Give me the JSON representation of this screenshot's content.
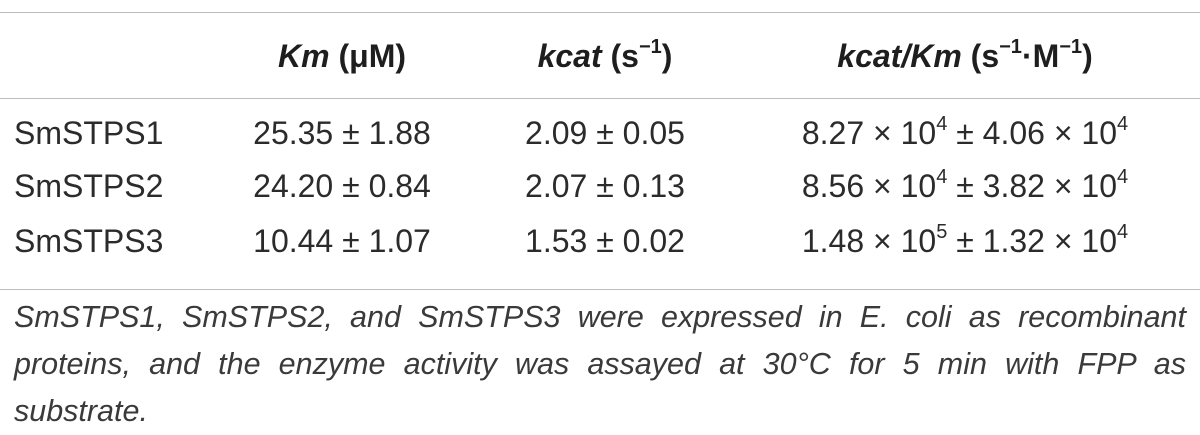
{
  "table": {
    "headers": {
      "row_label": "",
      "km_label": "Km",
      "km_unit": "(μM)",
      "kcat_label": "kcat",
      "kcat_unit_pre": "(s",
      "kcat_unit_sup": "−1",
      "kcat_unit_post": ")",
      "eff_label": "kcat/Km",
      "eff_unit_pre": "(s",
      "eff_unit_sup1": "−1",
      "eff_unit_mid": "·M",
      "eff_unit_sup2": "−1",
      "eff_unit_post": ")"
    },
    "rows": [
      {
        "name": "SmSTPS1",
        "km": "25.35 ± 1.88",
        "kcat": "2.09 ± 0.05",
        "eff_a": "8.27 × 10",
        "eff_a_exp": "4",
        "eff_b": " ± 4.06 × 10",
        "eff_b_exp": "4"
      },
      {
        "name": "SmSTPS2",
        "km": "24.20 ± 0.84",
        "kcat": "2.07 ± 0.13",
        "eff_a": "8.56 × 10",
        "eff_a_exp": "4",
        "eff_b": " ± 3.82 × 10",
        "eff_b_exp": "4"
      },
      {
        "name": "SmSTPS3",
        "km": "10.44 ± 1.07",
        "kcat": "1.53 ± 0.02",
        "eff_a": "1.48 × 10",
        "eff_a_exp": "5",
        "eff_b": " ± 1.32 × 10",
        "eff_b_exp": "4"
      }
    ],
    "footnote": "SmSTPS1, SmSTPS2, and SmSTPS3 were expressed in E. coli as recombinant proteins, and the enzyme activity was assayed at 30°C for 5 min with FPP as substrate."
  }
}
